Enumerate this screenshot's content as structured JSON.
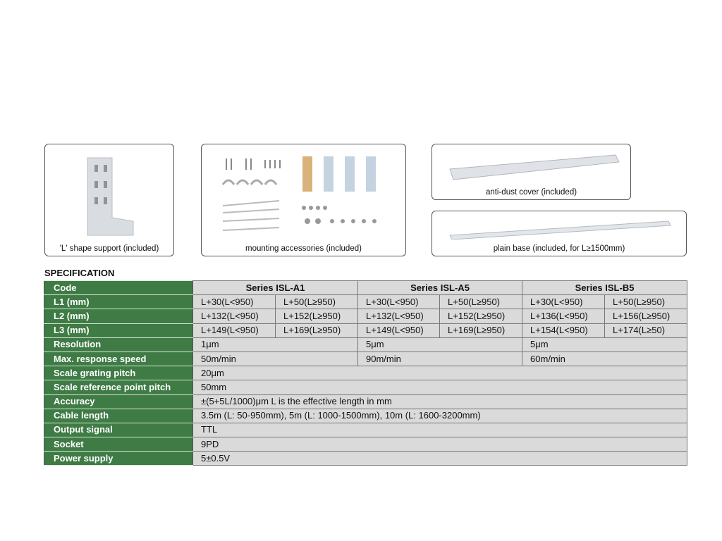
{
  "cards": [
    {
      "caption": "'L' shape support (included)"
    },
    {
      "caption": "mounting accessories (included)"
    },
    {
      "caption": "anti-dust cover (included)"
    },
    {
      "caption": "plain base (included, for L≥1500mm)"
    }
  ],
  "spec": {
    "title": "SPECIFICATION",
    "code_label": "Code",
    "series": [
      "Series ISL-A1",
      "Series ISL-A5",
      "Series ISL-B5"
    ],
    "split_rows": [
      {
        "label": "L1 (mm)",
        "values": [
          "L+30(L<950)",
          "L+50(L≥950)",
          "L+30(L<950)",
          "L+50(L≥950)",
          "L+30(L<950)",
          "L+50(L≥950)"
        ]
      },
      {
        "label": "L2 (mm)",
        "values": [
          "L+132(L<950)",
          "L+152(L≥950)",
          "L+132(L<950)",
          "L+152(L≥950)",
          "L+136(L<950)",
          "L+156(L≥950)"
        ]
      },
      {
        "label": "L3 (mm)",
        "values": [
          "L+149(L<950)",
          "L+169(L≥950)",
          "L+149(L<950)",
          "L+169(L≥950)",
          "L+154(L<950)",
          "L+174(L≥50)"
        ]
      }
    ],
    "series_rows": [
      {
        "label": "Resolution",
        "values": [
          "1μm",
          "5μm",
          "5μm"
        ]
      },
      {
        "label": "Max. response speed",
        "values": [
          "50m/min",
          "90m/min",
          "60m/min"
        ]
      }
    ],
    "full_rows": [
      {
        "label": "Scale grating pitch",
        "value": "20μm"
      },
      {
        "label": "Scale reference point pitch",
        "value": "50mm"
      },
      {
        "label": "Accuracy",
        "value": "±(5+5L/1000)μm    L is the effective length in mm"
      },
      {
        "label": "Cable length",
        "value": "3.5m (L: 50-950mm), 5m (L: 1000-1500mm), 10m (L: 1600-3200mm)"
      },
      {
        "label": "Output signal",
        "value": "TTL"
      },
      {
        "label": "Socket",
        "value": "9PD"
      },
      {
        "label": "Power supply",
        "value": "5±0.5V"
      }
    ]
  }
}
